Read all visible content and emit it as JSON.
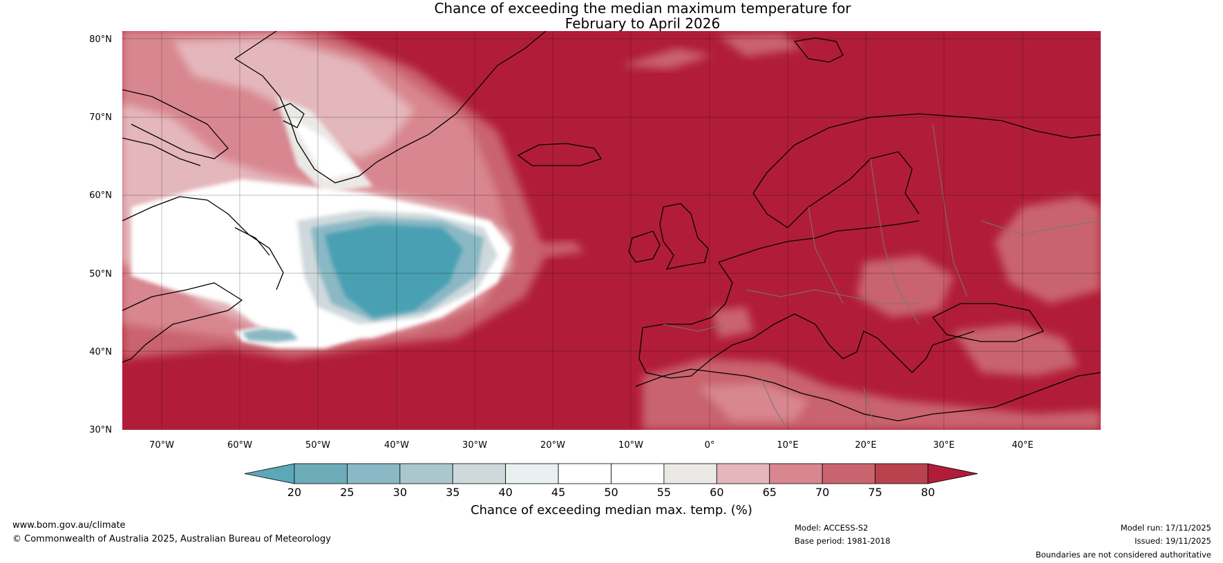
{
  "title": {
    "line1": "Chance of exceeding the median maximum temperature for",
    "line2": "February to April 2026"
  },
  "map": {
    "lat_labels": [
      "80°N",
      "70°N",
      "60°N",
      "50°N",
      "40°N",
      "30°N"
    ],
    "lon_labels": [
      "70°W",
      "60°W",
      "50°W",
      "40°W",
      "30°W",
      "20°W",
      "10°W",
      "0°",
      "10°E",
      "20°E",
      "30°E",
      "40°E"
    ],
    "lat_range": [
      30,
      81
    ],
    "lon_range": [
      -75,
      50
    ]
  },
  "colorbar": {
    "ticks": [
      "20",
      "25",
      "30",
      "35",
      "40",
      "45",
      "50",
      "55",
      "60",
      "65",
      "70",
      "75",
      "80"
    ],
    "colors": [
      "#5aa8b8",
      "#6eacba",
      "#8ab8c4",
      "#a9c7cc",
      "#cfd9dc",
      "#e9f0f0",
      "#ffffff",
      "#ffffff",
      "#ebe9e6",
      "#e4b7bc",
      "#d8868f",
      "#c9646e",
      "#b8424d",
      "#b11d38"
    ],
    "label": "Chance of exceeding median max. temp. (%)"
  },
  "footer": {
    "website": "www.bom.gov.au/climate",
    "copyright": "© Commonwealth of Australia 2025, Australian Bureau of Meteorology",
    "model": "Model: ACCESS-S2",
    "base_period": "Base period: 1981-2018",
    "model_run": "Model run: 17/11/2025",
    "issued": "Issued: 19/11/2025",
    "disclaimer": "Boundaries are not considered authoritative"
  }
}
